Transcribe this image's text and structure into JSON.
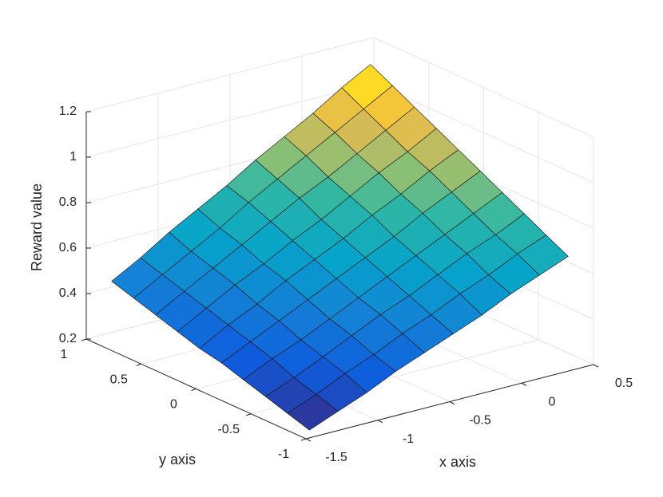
{
  "chart_data": {
    "type": "surface",
    "xlabel": "x axis",
    "ylabel": "y axis",
    "zlabel": "Reward value",
    "xlim": [
      -1.5,
      0.5
    ],
    "xticks": [
      -1.5,
      -1,
      -0.5,
      0,
      0.5
    ],
    "ylim": [
      -1,
      1
    ],
    "yticks": [
      -1,
      -0.5,
      0,
      0.5,
      1
    ],
    "zlim": [
      0.2,
      1.2
    ],
    "zticks": [
      0.2,
      0.4,
      0.6,
      0.8,
      1,
      1.2
    ],
    "grid": true,
    "colormap": "parula",
    "x": [
      -1.4,
      -1.2,
      -1.0,
      -0.8,
      -0.6,
      -0.4,
      -0.2,
      0.0,
      0.2,
      0.4
    ],
    "y": [
      -0.9,
      -0.7,
      -0.5,
      -0.3,
      -0.1,
      0.1,
      0.3,
      0.5,
      0.7,
      0.9
    ],
    "z": [
      [
        0.2,
        0.23,
        0.26,
        0.29,
        0.32,
        0.34,
        0.37,
        0.4,
        0.43,
        0.46
      ],
      [
        0.25,
        0.28,
        0.31,
        0.35,
        0.38,
        0.41,
        0.44,
        0.47,
        0.5,
        0.53
      ],
      [
        0.3,
        0.34,
        0.37,
        0.4,
        0.44,
        0.47,
        0.51,
        0.54,
        0.57,
        0.61
      ],
      [
        0.36,
        0.39,
        0.43,
        0.46,
        0.5,
        0.54,
        0.57,
        0.61,
        0.64,
        0.68
      ],
      [
        0.41,
        0.45,
        0.49,
        0.52,
        0.56,
        0.6,
        0.64,
        0.68,
        0.72,
        0.75
      ],
      [
        0.46,
        0.5,
        0.54,
        0.58,
        0.62,
        0.66,
        0.7,
        0.75,
        0.79,
        0.83
      ],
      [
        0.51,
        0.56,
        0.6,
        0.64,
        0.68,
        0.73,
        0.77,
        0.81,
        0.86,
        0.9
      ],
      [
        0.57,
        0.61,
        0.66,
        0.7,
        0.75,
        0.79,
        0.84,
        0.88,
        0.93,
        0.97
      ],
      [
        0.62,
        0.67,
        0.71,
        0.76,
        0.81,
        0.86,
        0.9,
        0.95,
        1.0,
        1.05
      ],
      [
        0.67,
        0.72,
        0.77,
        0.82,
        0.87,
        0.92,
        0.97,
        1.02,
        1.07,
        1.12
      ]
    ]
  }
}
